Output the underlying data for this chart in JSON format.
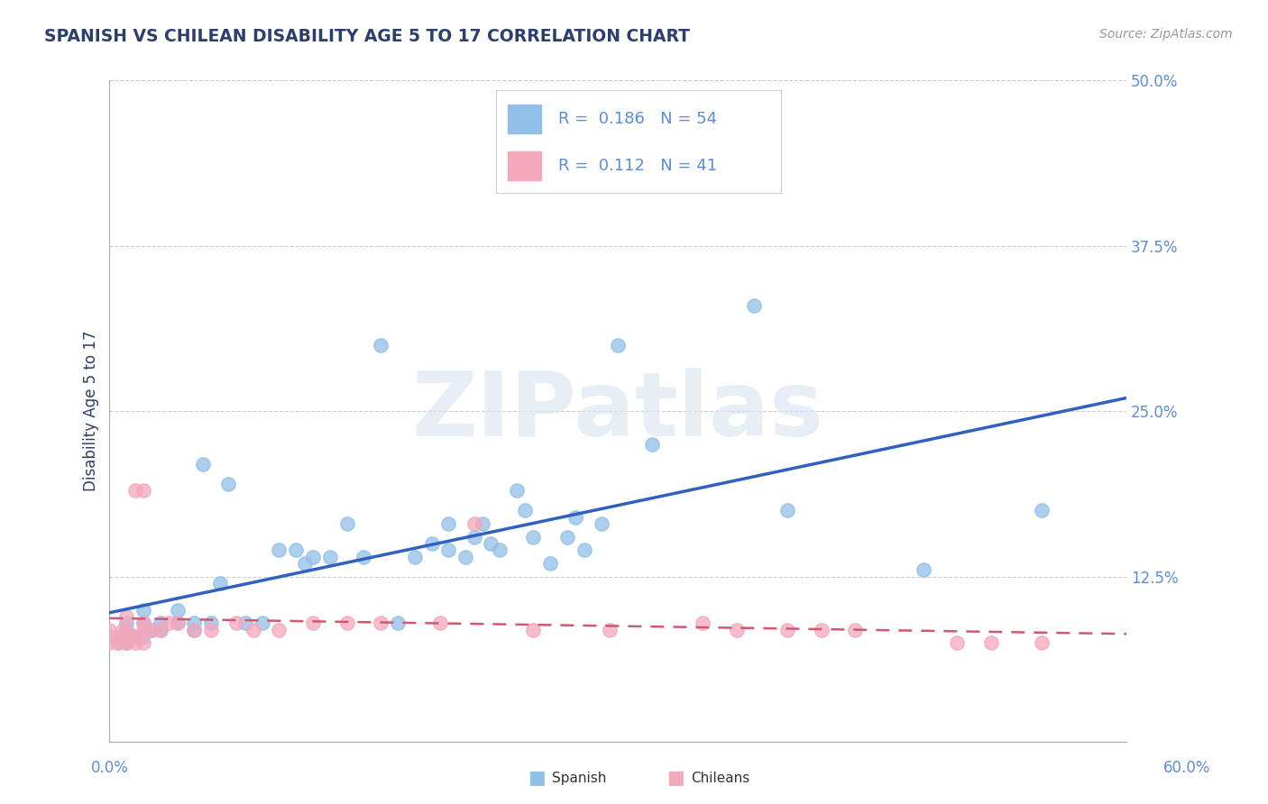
{
  "title": "SPANISH VS CHILEAN DISABILITY AGE 5 TO 17 CORRELATION CHART",
  "source": "Source: ZipAtlas.com",
  "ylabel": "Disability Age 5 to 17",
  "xlim": [
    0.0,
    0.6
  ],
  "ylim": [
    0.0,
    0.5
  ],
  "yticks": [
    0.125,
    0.25,
    0.375,
    0.5
  ],
  "ytick_labels": [
    "12.5%",
    "25.0%",
    "37.5%",
    "50.0%"
  ],
  "R_spanish": 0.186,
  "N_spanish": 54,
  "R_chileans": 0.112,
  "N_chileans": 41,
  "blue_color": "#92C0E8",
  "pink_color": "#F4A8BB",
  "blue_line_color": "#3060C0",
  "pink_line_color": "#D05870",
  "title_color": "#2C3E6B",
  "axis_label_color": "#5B8DD9",
  "watermark": "ZIPatlas",
  "spanish_x": [
    0.005,
    0.008,
    0.01,
    0.01,
    0.01,
    0.015,
    0.02,
    0.02,
    0.02,
    0.025,
    0.03,
    0.03,
    0.04,
    0.04,
    0.05,
    0.05,
    0.055,
    0.06,
    0.065,
    0.07,
    0.08,
    0.09,
    0.1,
    0.11,
    0.115,
    0.12,
    0.13,
    0.14,
    0.15,
    0.16,
    0.17,
    0.18,
    0.19,
    0.2,
    0.2,
    0.21,
    0.215,
    0.22,
    0.225,
    0.23,
    0.24,
    0.245,
    0.25,
    0.26,
    0.27,
    0.275,
    0.28,
    0.29,
    0.3,
    0.32,
    0.38,
    0.4,
    0.48,
    0.55
  ],
  "spanish_y": [
    0.075,
    0.08,
    0.075,
    0.085,
    0.09,
    0.08,
    0.08,
    0.09,
    0.1,
    0.085,
    0.085,
    0.09,
    0.09,
    0.1,
    0.085,
    0.09,
    0.21,
    0.09,
    0.12,
    0.195,
    0.09,
    0.09,
    0.145,
    0.145,
    0.135,
    0.14,
    0.14,
    0.165,
    0.14,
    0.3,
    0.09,
    0.14,
    0.15,
    0.145,
    0.165,
    0.14,
    0.155,
    0.165,
    0.15,
    0.145,
    0.19,
    0.175,
    0.155,
    0.135,
    0.155,
    0.17,
    0.145,
    0.165,
    0.3,
    0.225,
    0.33,
    0.175,
    0.13,
    0.175
  ],
  "chileans_x": [
    0.0,
    0.0,
    0.0,
    0.005,
    0.005,
    0.008,
    0.01,
    0.01,
    0.01,
    0.01,
    0.015,
    0.015,
    0.015,
    0.02,
    0.02,
    0.02,
    0.02,
    0.025,
    0.03,
    0.035,
    0.04,
    0.05,
    0.06,
    0.075,
    0.085,
    0.1,
    0.12,
    0.14,
    0.16,
    0.195,
    0.215,
    0.25,
    0.295,
    0.35,
    0.37,
    0.4,
    0.42,
    0.44,
    0.5,
    0.52,
    0.55
  ],
  "chileans_y": [
    0.075,
    0.08,
    0.085,
    0.075,
    0.08,
    0.085,
    0.075,
    0.08,
    0.085,
    0.095,
    0.075,
    0.08,
    0.19,
    0.075,
    0.085,
    0.09,
    0.19,
    0.085,
    0.085,
    0.09,
    0.09,
    0.085,
    0.085,
    0.09,
    0.085,
    0.085,
    0.09,
    0.09,
    0.09,
    0.09,
    0.165,
    0.085,
    0.085,
    0.09,
    0.085,
    0.085,
    0.085,
    0.085,
    0.075,
    0.075,
    0.075
  ]
}
